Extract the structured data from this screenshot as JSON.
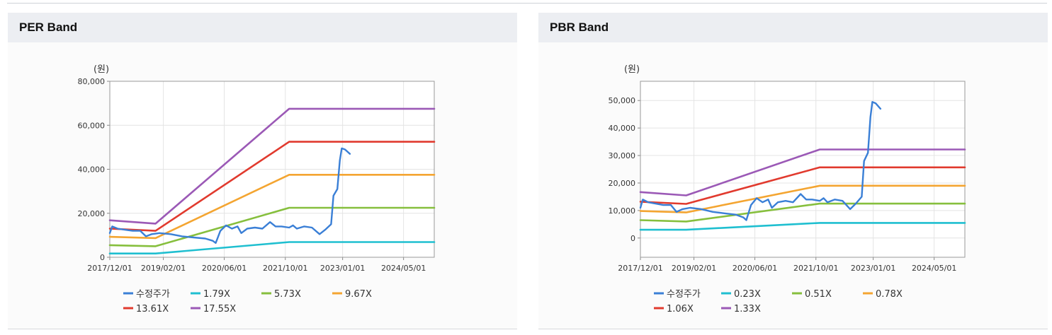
{
  "colors": {
    "price": "#3a7fd6",
    "b1": "#1fbfd0",
    "b2": "#86bf3d",
    "b3": "#f4a531",
    "b4": "#e13a2e",
    "b5": "#9b59b6"
  },
  "chart_data": [
    {
      "type": "line",
      "title": "PER Band",
      "unit": "(원)",
      "yticks": [
        "0",
        "20,000",
        "40,000",
        "60,000",
        "80,000"
      ],
      "ylim": [
        0,
        80000
      ],
      "xticks": [
        "2017/12/01",
        "2019/02/01",
        "2020/06/01",
        "2021/10/01",
        "2023/01/01",
        "2024/05/01"
      ],
      "xlim": [
        "2017-12-01",
        "2025-01-01"
      ],
      "grid": true,
      "legend_position": "bottom",
      "series": [
        {
          "name": "수정주가",
          "color": "#3a7fd6",
          "points": [
            [
              "2017-12-01",
              11000
            ],
            [
              "2017-12-20",
              14000
            ],
            [
              "2018-02-01",
              13000
            ],
            [
              "2018-04-01",
              12500
            ],
            [
              "2018-06-01",
              12000
            ],
            [
              "2018-08-01",
              12000
            ],
            [
              "2018-09-15",
              9500
            ],
            [
              "2018-11-01",
              10500
            ],
            [
              "2019-01-01",
              11000
            ],
            [
              "2019-04-01",
              10500
            ],
            [
              "2019-07-01",
              9500
            ],
            [
              "2019-10-01",
              9000
            ],
            [
              "2020-01-01",
              8500
            ],
            [
              "2020-03-01",
              7500
            ],
            [
              "2020-03-25",
              6500
            ],
            [
              "2020-05-01",
              12000
            ],
            [
              "2020-06-15",
              14500
            ],
            [
              "2020-08-01",
              13000
            ],
            [
              "2020-09-15",
              14000
            ],
            [
              "2020-10-15",
              11000
            ],
            [
              "2020-12-01",
              13000
            ],
            [
              "2021-02-01",
              13500
            ],
            [
              "2021-04-01",
              13000
            ],
            [
              "2021-06-01",
              16000
            ],
            [
              "2021-07-15",
              14000
            ],
            [
              "2021-09-01",
              14000
            ],
            [
              "2021-11-01",
              13500
            ],
            [
              "2021-12-01",
              14500
            ],
            [
              "2022-01-01",
              13000
            ],
            [
              "2022-03-01",
              14000
            ],
            [
              "2022-05-01",
              13500
            ],
            [
              "2022-07-01",
              10500
            ],
            [
              "2022-08-15",
              12500
            ],
            [
              "2022-10-01",
              15000
            ],
            [
              "2022-10-20",
              28000
            ],
            [
              "2022-11-20",
              31000
            ],
            [
              "2022-12-10",
              44000
            ],
            [
              "2022-12-25",
              49500
            ],
            [
              "2023-01-20",
              49000
            ],
            [
              "2023-02-28",
              47000
            ]
          ]
        },
        {
          "name": "1.79X",
          "color": "#1fbfd0",
          "points": [
            [
              "2017-12-01",
              1700
            ],
            [
              "2018-12-01",
              1700
            ],
            [
              "2021-11-01",
              6900
            ],
            [
              "2025-01-01",
              6900
            ]
          ]
        },
        {
          "name": "5.73X",
          "color": "#86bf3d",
          "points": [
            [
              "2017-12-01",
              5500
            ],
            [
              "2018-12-01",
              5000
            ],
            [
              "2021-11-01",
              22500
            ],
            [
              "2025-01-01",
              22500
            ]
          ]
        },
        {
          "name": "9.67X",
          "color": "#f4a531",
          "points": [
            [
              "2017-12-01",
              9300
            ],
            [
              "2018-12-01",
              8700
            ],
            [
              "2021-11-01",
              37500
            ],
            [
              "2025-01-01",
              37500
            ]
          ]
        },
        {
          "name": "13.61X",
          "color": "#e13a2e",
          "points": [
            [
              "2017-12-01",
              13000
            ],
            [
              "2018-12-01",
              12000
            ],
            [
              "2021-11-01",
              52500
            ],
            [
              "2025-01-01",
              52500
            ]
          ]
        },
        {
          "name": "17.55X",
          "color": "#9b59b6",
          "points": [
            [
              "2017-12-01",
              16800
            ],
            [
              "2018-12-01",
              15300
            ],
            [
              "2021-11-01",
              67500
            ],
            [
              "2025-01-01",
              67500
            ]
          ]
        }
      ]
    },
    {
      "type": "line",
      "title": "PBR Band",
      "unit": "(원)",
      "yticks": [
        "0",
        "10,000",
        "20,000",
        "30,000",
        "40,000",
        "50,000"
      ],
      "ylim": [
        -7000,
        57000
      ],
      "xticks": [
        "2017/12/01",
        "2019/02/01",
        "2020/06/01",
        "2021/10/01",
        "2023/01/01",
        "2024/05/01"
      ],
      "xlim": [
        "2017-12-01",
        "2025-01-01"
      ],
      "grid": true,
      "legend_position": "bottom",
      "series": [
        {
          "name": "수정주가",
          "color": "#3a7fd6",
          "points": [
            [
              "2017-12-01",
              11000
            ],
            [
              "2017-12-20",
              14000
            ],
            [
              "2018-02-01",
              13000
            ],
            [
              "2018-04-01",
              12500
            ],
            [
              "2018-06-01",
              12000
            ],
            [
              "2018-08-01",
              12000
            ],
            [
              "2018-09-15",
              9500
            ],
            [
              "2018-11-01",
              10500
            ],
            [
              "2019-01-01",
              11000
            ],
            [
              "2019-04-01",
              10500
            ],
            [
              "2019-07-01",
              9500
            ],
            [
              "2019-10-01",
              9000
            ],
            [
              "2020-01-01",
              8500
            ],
            [
              "2020-03-01",
              7500
            ],
            [
              "2020-03-25",
              6500
            ],
            [
              "2020-05-01",
              12000
            ],
            [
              "2020-06-15",
              14500
            ],
            [
              "2020-08-01",
              13000
            ],
            [
              "2020-09-15",
              14000
            ],
            [
              "2020-10-15",
              11000
            ],
            [
              "2020-12-01",
              13000
            ],
            [
              "2021-02-01",
              13500
            ],
            [
              "2021-04-01",
              13000
            ],
            [
              "2021-06-01",
              16000
            ],
            [
              "2021-07-15",
              14000
            ],
            [
              "2021-09-01",
              14000
            ],
            [
              "2021-11-01",
              13500
            ],
            [
              "2021-12-01",
              14500
            ],
            [
              "2022-01-01",
              13000
            ],
            [
              "2022-03-01",
              14000
            ],
            [
              "2022-05-01",
              13500
            ],
            [
              "2022-07-01",
              10500
            ],
            [
              "2022-08-15",
              12500
            ],
            [
              "2022-10-01",
              15000
            ],
            [
              "2022-10-20",
              28000
            ],
            [
              "2022-11-20",
              31000
            ],
            [
              "2022-12-10",
              44000
            ],
            [
              "2022-12-25",
              49500
            ],
            [
              "2023-01-20",
              49000
            ],
            [
              "2023-02-28",
              47000
            ]
          ]
        },
        {
          "name": "0.23X",
          "color": "#1fbfd0",
          "points": [
            [
              "2017-12-01",
              3000
            ],
            [
              "2018-12-01",
              3000
            ],
            [
              "2021-11-01",
              5500
            ],
            [
              "2025-01-01",
              5500
            ]
          ]
        },
        {
          "name": "0.51X",
          "color": "#86bf3d",
          "points": [
            [
              "2017-12-01",
              6500
            ],
            [
              "2018-12-01",
              6000
            ],
            [
              "2021-11-01",
              12500
            ],
            [
              "2025-01-01",
              12500
            ]
          ]
        },
        {
          "name": "0.78X",
          "color": "#f4a531",
          "points": [
            [
              "2017-12-01",
              9800
            ],
            [
              "2018-12-01",
              9300
            ],
            [
              "2021-11-01",
              19000
            ],
            [
              "2025-01-01",
              19000
            ]
          ]
        },
        {
          "name": "1.06X",
          "color": "#e13a2e",
          "points": [
            [
              "2017-12-01",
              13200
            ],
            [
              "2018-12-01",
              12400
            ],
            [
              "2021-11-01",
              25700
            ],
            [
              "2025-01-01",
              25700
            ]
          ]
        },
        {
          "name": "1.33X",
          "color": "#9b59b6",
          "points": [
            [
              "2017-12-01",
              16700
            ],
            [
              "2018-12-01",
              15500
            ],
            [
              "2021-11-01",
              32200
            ],
            [
              "2025-01-01",
              32200
            ]
          ]
        }
      ]
    }
  ]
}
